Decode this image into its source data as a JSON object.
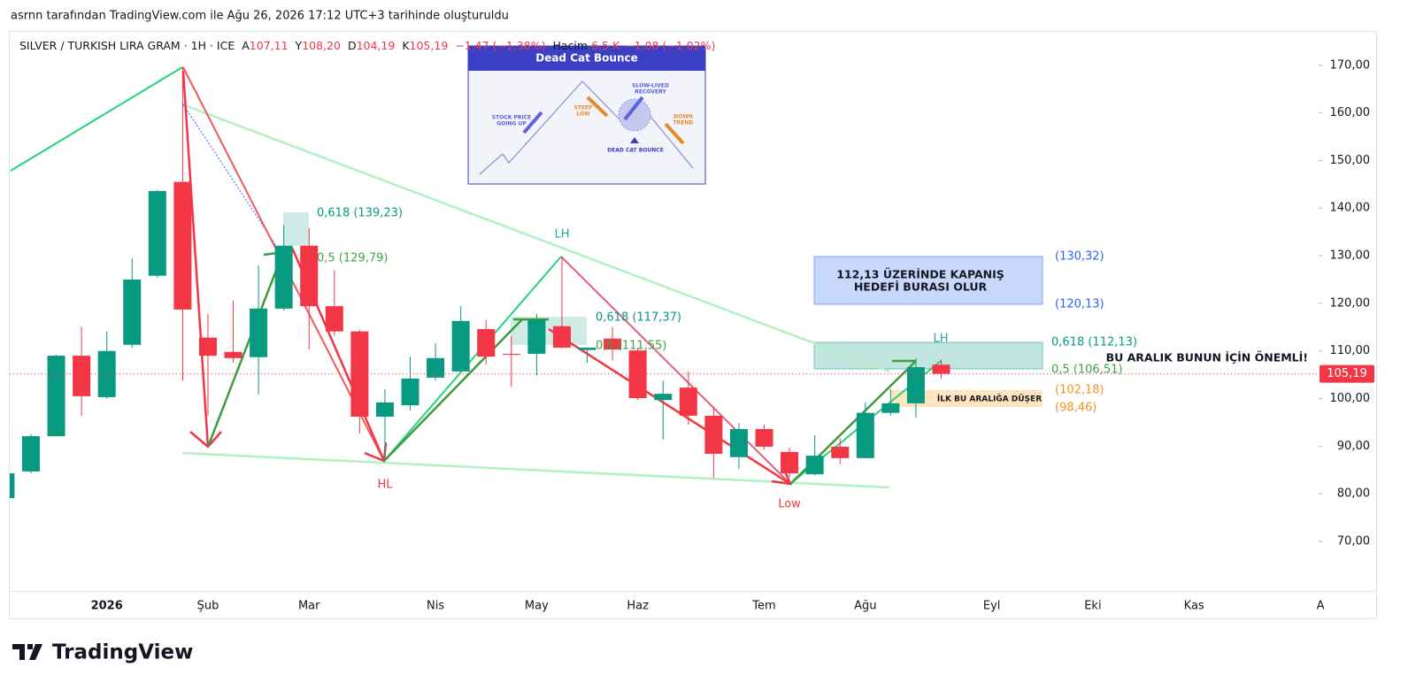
{
  "header": {
    "caption": "asrnn tarafından TradingView.com ile Ağu 26, 2026 17:12 UTC+3 tarihinde oluşturuldu"
  },
  "chart_data": {
    "type": "candlestick",
    "title": "SILVER / TURKISH LIRA GRAM · 1H · ICE",
    "ohlc_legend": [
      {
        "key": "A",
        "value": "107,11"
      },
      {
        "key": "Y",
        "value": "108,20"
      },
      {
        "key": "D",
        "value": "104,19"
      },
      {
        "key": "K",
        "value": "105,19"
      }
    ],
    "change": "−1,47 (−1,38%)",
    "volume_label": "Hacim",
    "volume": "6,5 K",
    "volume_change": "−1,08 (−1,02%)",
    "categories": [
      null,
      null,
      null,
      null,
      "2026",
      null,
      null,
      null,
      "Şub",
      null,
      null,
      null,
      "Mar",
      null,
      null,
      null,
      null,
      "Nis",
      null,
      null,
      null,
      "May",
      null,
      null,
      null,
      "Haz",
      null,
      null,
      null,
      null,
      "Tem",
      null,
      null,
      null,
      "Ağu",
      null,
      null,
      null,
      null,
      "Eyl",
      null,
      null,
      null,
      "Eki",
      null,
      null,
      null,
      "Kas",
      null,
      null,
      null,
      null,
      "A"
    ],
    "open": [
      79.1,
      84.7,
      92.1,
      109.0,
      100.3,
      111.3,
      125.8,
      145.5,
      112.8,
      109.8,
      108.7,
      118.9,
      132.1,
      119.4,
      114.1,
      96.2,
      98.6,
      104.4,
      105.7,
      114.6,
      109.4,
      109.4,
      115.2,
      110.2,
      112.6,
      110.1,
      99.7,
      102.3,
      96.4,
      87.7,
      93.6,
      88.8,
      84.1,
      89.9,
      87.5,
      97.0,
      99.0,
      107.11,
      null,
      null,
      null,
      null,
      null,
      null,
      null,
      null,
      null,
      null,
      null,
      null,
      null,
      null,
      null
    ],
    "high": [
      84.3,
      92.5,
      109.2,
      115.0,
      114.1,
      129.5,
      143.8,
      169.6,
      117.8,
      120.6,
      128.0,
      136.4,
      135.8,
      126.9,
      114.5,
      102.0,
      108.8,
      111.6,
      119.4,
      116.5,
      113.1,
      117.8,
      129.9,
      110.7,
      115.0,
      110.7,
      103.8,
      105.7,
      98.3,
      94.9,
      94.5,
      89.7,
      92.3,
      91.7,
      99.2,
      102.0,
      108.5,
      108.2,
      null,
      null,
      null,
      null,
      null,
      null,
      null,
      null,
      null,
      null,
      null,
      null,
      null,
      null,
      null
    ],
    "low": [
      79.1,
      84.3,
      92.1,
      96.4,
      100.0,
      110.7,
      125.4,
      103.8,
      96.4,
      107.5,
      100.9,
      118.5,
      110.3,
      113.2,
      92.7,
      87.1,
      97.5,
      103.8,
      105.7,
      107.2,
      102.5,
      104.8,
      110.5,
      107.5,
      108.0,
      99.7,
      91.4,
      94.5,
      83.4,
      85.2,
      89.3,
      83.4,
      83.9,
      86.2,
      87.5,
      96.4,
      96.0,
      104.19,
      null,
      null,
      null,
      null,
      null,
      null,
      null,
      null,
      null,
      null,
      null,
      null,
      null,
      null,
      null
    ],
    "close": [
      84.3,
      92.1,
      109.0,
      100.5,
      110.0,
      125.0,
      143.6,
      118.7,
      109.0,
      108.5,
      118.9,
      132.1,
      119.4,
      114.1,
      96.2,
      99.2,
      104.2,
      108.5,
      116.3,
      108.8,
      109.2,
      116.5,
      110.7,
      110.7,
      110.3,
      100.1,
      101.0,
      96.4,
      88.4,
      93.6,
      89.9,
      84.3,
      88.0,
      87.5,
      97.0,
      99.0,
      106.6,
      105.19,
      null,
      null,
      null,
      null,
      null,
      null,
      null,
      null,
      null,
      null,
      null,
      null,
      null,
      null,
      null
    ],
    "up_color": "#089981",
    "down_color": "#f23645",
    "ylim": [
      59.6,
      177.2
    ],
    "yticks": [
      {
        "value": 70,
        "label": "70,00"
      },
      {
        "value": 80,
        "label": "80,00"
      },
      {
        "value": 90,
        "label": "90,00"
      },
      {
        "value": 100,
        "label": "100,00"
      },
      {
        "value": 110,
        "label": "110,00"
      },
      {
        "value": 120,
        "label": "120,00"
      },
      {
        "value": 130,
        "label": "130,00"
      },
      {
        "value": 140,
        "label": "140,00"
      },
      {
        "value": 150,
        "label": "150,00"
      },
      {
        "value": 160,
        "label": "160,00"
      },
      {
        "value": 170,
        "label": "170,00"
      }
    ],
    "last_price_label": "105,19",
    "annotations": {
      "lh1": "LH",
      "hl": "HL",
      "low": "Low",
      "lh2": "LH",
      "fib1_618": "0,618 (139,23)",
      "fib1_5": "0,5 (129,79)",
      "fib2_618": "0,618 (117,37)",
      "fib2_5": "0,5 (111,55)",
      "fib3_618": "0,618 (112,13)",
      "fib3_5": "0,5 (106,51)",
      "target_high": "(130,32)",
      "target_low": "(120,13)",
      "drop_high": "(102,18)",
      "drop_low": "(98,46)",
      "target_note_1": "112,13 ÜZERİNDE KAPANIŞ",
      "target_note_2": "HEDEFİ BURASI OLUR",
      "range_note": "BU ARALIK BUNUN İÇİN ÖNEMLİ!",
      "drop_note": "İLK BU ARALIĞA DÜŞER"
    }
  },
  "inset": {
    "title": "Dead Cat Bounce",
    "going_up": [
      "STOCK PRICE",
      "GOING UP"
    ],
    "steep_low": [
      "STEEP",
      "LOW"
    ],
    "recovery": [
      "SLOW-LIVED",
      "RECOVERY"
    ],
    "down_trend": [
      "DOWN",
      "TREND"
    ],
    "bounce": "DEAD CAT BOUNCE"
  },
  "footer": {
    "logo": "TradingView"
  }
}
